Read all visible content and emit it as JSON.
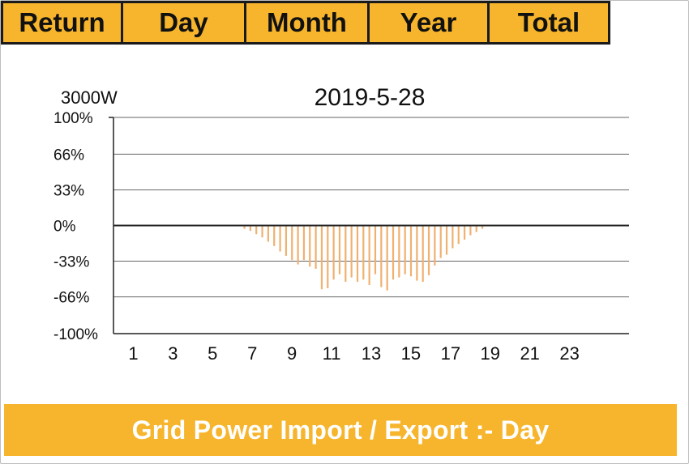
{
  "tabs": [
    {
      "label": "Return"
    },
    {
      "label": "Day"
    },
    {
      "label": "Month"
    },
    {
      "label": "Year"
    },
    {
      "label": "Total"
    }
  ],
  "colors": {
    "accent": "#f6b52d",
    "bar": "#f0b070",
    "axis": "#222222",
    "grid": "#666666"
  },
  "footer": {
    "title": "Grid Power Import / Export :- Day"
  },
  "chart_data": {
    "type": "bar",
    "title": "2019-5-28",
    "unit_label": "3000W",
    "ylim": [
      -100,
      100
    ],
    "y_ticks": [
      "100%",
      "66%",
      "33%",
      "0%",
      "-33%",
      "-66%",
      "-100%"
    ],
    "y_tick_values": [
      100,
      66,
      33,
      0,
      -33,
      -66,
      -100
    ],
    "xlim": [
      0,
      26
    ],
    "x_ticks": [
      "1",
      "3",
      "5",
      "7",
      "9",
      "11",
      "13",
      "15",
      "17",
      "19",
      "21",
      "23"
    ],
    "x_tick_values": [
      1,
      3,
      5,
      7,
      9,
      11,
      13,
      15,
      17,
      19,
      21,
      23
    ],
    "grid": true,
    "legend": "none",
    "series": [
      {
        "x": [
          6.6,
          6.9,
          7.2,
          7.5,
          7.8,
          8.1,
          8.4,
          8.7,
          9.0,
          9.3,
          9.6,
          9.9,
          10.2,
          10.5,
          10.8,
          11.1,
          11.4,
          11.7,
          12.0,
          12.3,
          12.6,
          12.9,
          13.2,
          13.5,
          13.8,
          14.1,
          14.4,
          14.7,
          15.0,
          15.3,
          15.6,
          15.9,
          16.2,
          16.5,
          16.8,
          17.1,
          17.4,
          17.7,
          18.0,
          18.3,
          18.6
        ],
        "values": [
          -3,
          -5,
          -8,
          -11,
          -15,
          -19,
          -24,
          -28,
          -32,
          -36,
          -32,
          -38,
          -40,
          -59,
          -58,
          -50,
          -45,
          -52,
          -48,
          -52,
          -50,
          -55,
          -45,
          -57,
          -60,
          -50,
          -48,
          -45,
          -47,
          -51,
          -52,
          -46,
          -37,
          -30,
          -27,
          -21,
          -17,
          -13,
          -9,
          -6,
          -3
        ]
      }
    ]
  }
}
